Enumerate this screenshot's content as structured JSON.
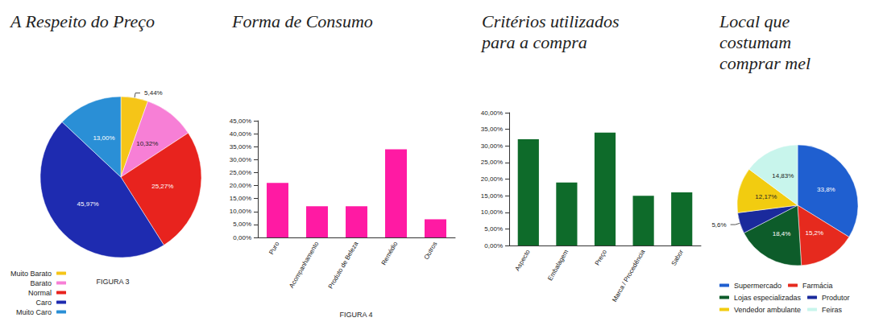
{
  "chart_data": [
    {
      "type": "pie",
      "title": "A Respeito do Preço",
      "caption": "FIGURA 3",
      "categories": [
        "Muito Barato",
        "Barato",
        "Normal",
        "Caro",
        "Muito Caro"
      ],
      "values": [
        5.44,
        10.32,
        25.27,
        45.97,
        13.0
      ],
      "value_labels": [
        "5,44%",
        "10,32%",
        "25,27%",
        "45,97%",
        "13,00%"
      ],
      "colors": [
        "#f5c518",
        "#f77fd6",
        "#e8231e",
        "#1e2bb0",
        "#2a8fd6"
      ],
      "legend": "lower left",
      "data_labels": true
    },
    {
      "type": "bar",
      "title": "Forma de Consumo",
      "caption": "FIGURA 4",
      "categories": [
        "Puro",
        "Acompanhamento",
        "Produto de Beleza",
        "Remédio",
        "Outros"
      ],
      "values": [
        21,
        12,
        12,
        34,
        7
      ],
      "color": "#ff1aa3",
      "ylim": [
        0,
        45
      ],
      "yticks": [
        {
          "value": 0,
          "label": "0,00%"
        },
        {
          "value": 5,
          "label": "5,00%"
        },
        {
          "value": 10,
          "label": "10,00%"
        },
        {
          "value": 15,
          "label": "15,00%"
        },
        {
          "value": 20,
          "label": "20,00%"
        },
        {
          "value": 25,
          "label": "25,00%"
        },
        {
          "value": 30,
          "label": "30,00%"
        },
        {
          "value": 35,
          "label": "35,00%"
        },
        {
          "value": 40,
          "label": "40,00%"
        },
        {
          "value": 45,
          "label": "45,00%"
        }
      ],
      "grid": false
    },
    {
      "type": "bar",
      "title": "Critérios utilizados para a compra",
      "categories": [
        "Aspecto",
        "Embalagem",
        "Preço",
        "Marca / Procedência",
        "Sabor"
      ],
      "values": [
        32,
        19,
        34,
        15,
        16
      ],
      "color": "#0e6b2a",
      "ylim": [
        0,
        40
      ],
      "yticks": [
        {
          "value": 0,
          "label": "0,00%"
        },
        {
          "value": 5,
          "label": "5,00%"
        },
        {
          "value": 10,
          "label": "10,00%"
        },
        {
          "value": 15,
          "label": "15,00%"
        },
        {
          "value": 20,
          "label": "20,00%"
        },
        {
          "value": 25,
          "label": "25,00%"
        },
        {
          "value": 30,
          "label": "30,00%"
        },
        {
          "value": 35,
          "label": "35,00%"
        },
        {
          "value": 40,
          "label": "40,00%"
        }
      ],
      "grid": false
    },
    {
      "type": "pie",
      "title": "Local que costumam comprar mel",
      "categories": [
        "Supermercado",
        "Farmácia",
        "Lojas especializadas",
        "Produtor",
        "Vendedor ambulante",
        "Feiras"
      ],
      "values": [
        33.8,
        15.2,
        18.4,
        5.6,
        12.17,
        14.83
      ],
      "value_labels": [
        "33,8%",
        "15,2%",
        "18,4%",
        "5,6%",
        "12,17%",
        "14,83%"
      ],
      "colors": [
        "#1f5fd0",
        "#e62a1e",
        "#0d5c2a",
        "#1a2a9c",
        "#f2cc10",
        "#c8f5ec"
      ],
      "legend": "lower right",
      "data_labels": true
    }
  ]
}
